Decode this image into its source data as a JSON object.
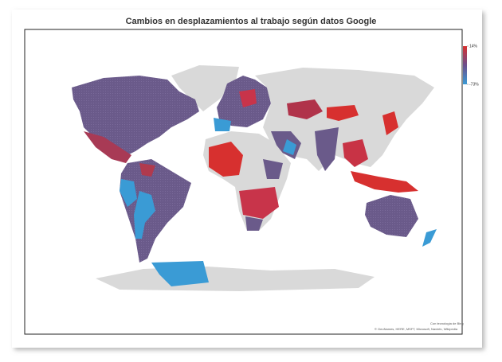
{
  "chart_data": {
    "type": "map",
    "title": "Cambios en desplazamientos al trabajo según datos Google",
    "clim": [
      -73,
      14
    ],
    "cticks": [
      {
        "value": 14,
        "label": "14%"
      },
      {
        "value": -73,
        "label": "-73%"
      }
    ],
    "colors": [
      "#3a9bd5",
      "#d7302f"
    ],
    "attribution": [
      "Con tecnología de Bing",
      "© GeoNames, HERE, MSFT, Microsoft, Navinfo, Wikipedia"
    ]
  }
}
